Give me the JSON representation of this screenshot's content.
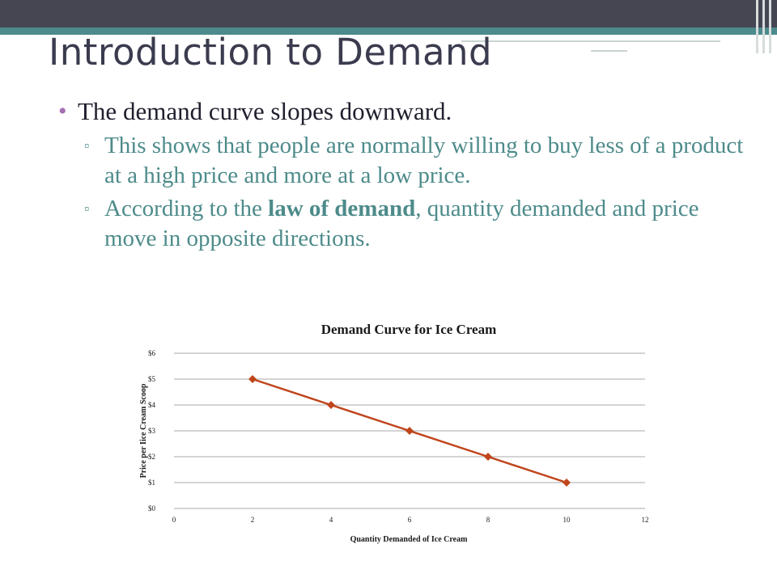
{
  "slide": {
    "title": "Introduction to Demand",
    "bullet": "The demand curve slopes downward.",
    "sub1": "This shows that people are normally willing to buy less of a product at a high price and more at a low price.",
    "sub2_pre": "According to the ",
    "sub2_bold": "law of demand",
    "sub2_post": ", quantity demanded and price move in opposite directions.",
    "sub_marker": "▫",
    "bullet_marker": "•"
  },
  "colors": {
    "topbar": "#464653",
    "accent_band": "#4c8a8c",
    "text_teal": "#4d8b8a",
    "series_line": "#c0451b"
  },
  "chart_data": {
    "type": "line",
    "title": "Demand Curve for Ice Cream",
    "xlabel": "Quantity Demanded  of Ice Cream",
    "ylabel": "Price per Iice Cream Scoop",
    "x": [
      2,
      4,
      6,
      8,
      10
    ],
    "values": [
      5,
      4,
      3,
      2,
      1
    ],
    "xlim": [
      0,
      12
    ],
    "ylim": [
      0,
      6
    ],
    "x_ticks": [
      "0",
      "2",
      "4",
      "6",
      "8",
      "10",
      "12"
    ],
    "y_ticks": [
      "$0",
      "$1",
      "$2",
      "$3",
      "$4",
      "$5",
      "$6"
    ],
    "grid": "horizontal",
    "marker": "diamond"
  }
}
